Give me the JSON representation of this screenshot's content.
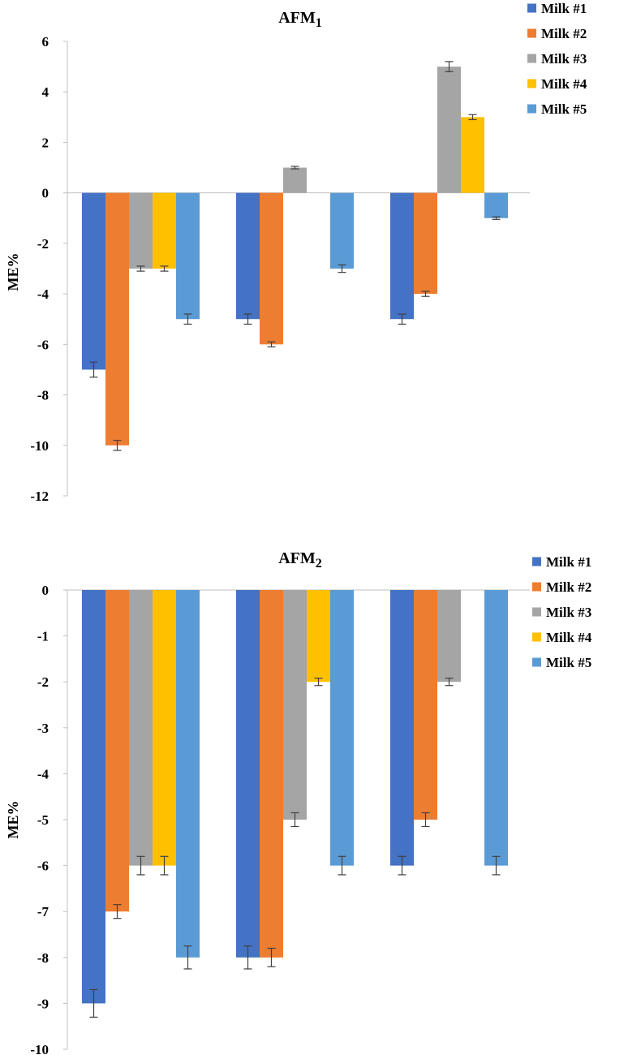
{
  "chart_data": [
    {
      "type": "bar",
      "title": "AFM",
      "title_sub": "1",
      "ylabel": "ME%",
      "xlabel": "",
      "ylim": [
        -12,
        6
      ],
      "yticks": [
        6,
        4,
        2,
        0,
        -2,
        -4,
        -6,
        -8,
        -10,
        -12
      ],
      "ytick_labels": [
        "6",
        "4",
        "2",
        "0",
        "-2",
        "-4",
        "-6",
        "-8",
        "-10",
        "-12"
      ],
      "categories": [
        "",
        "",
        ""
      ],
      "legend_position": "top-right",
      "series": [
        {
          "name": "Milk #1",
          "color": "#4472C4",
          "values": [
            -7,
            -5,
            -5
          ],
          "errors": [
            0.3,
            0.2,
            0.2
          ]
        },
        {
          "name": "Milk #2",
          "color": "#ED7D31",
          "values": [
            -10,
            -6,
            -4
          ],
          "errors": [
            0.2,
            0.1,
            0.1
          ]
        },
        {
          "name": "Milk #3",
          "color": "#A5A5A5",
          "values": [
            -3,
            1,
            5
          ],
          "errors": [
            0.1,
            0.05,
            0.2
          ]
        },
        {
          "name": "Milk #4",
          "color": "#FFC000",
          "values": [
            -3,
            null,
            3
          ],
          "errors": [
            0.1,
            0,
            0.1
          ]
        },
        {
          "name": "Milk #5",
          "color": "#5B9BD5",
          "values": [
            -5,
            -3,
            -1
          ],
          "errors": [
            0.2,
            0.15,
            0.05
          ]
        }
      ]
    },
    {
      "type": "bar",
      "title": "AFM",
      "title_sub": "2",
      "ylabel": "ME%",
      "xlabel": "",
      "ylim": [
        -10,
        0
      ],
      "yticks": [
        0,
        -1,
        -2,
        -3,
        -4,
        -5,
        -6,
        -7,
        -8,
        -9,
        -10
      ],
      "ytick_labels": [
        "0",
        "-1",
        "-2",
        "-3",
        "-4",
        "-5",
        "-6",
        "-7",
        "-8",
        "-9",
        "-10"
      ],
      "categories": [
        "",
        "",
        ""
      ],
      "legend_position": "top-right",
      "series": [
        {
          "name": "Milk #1",
          "color": "#4472C4",
          "values": [
            -9,
            -8,
            -6
          ],
          "errors": [
            0.3,
            0.25,
            0.2
          ]
        },
        {
          "name": "Milk #2",
          "color": "#ED7D31",
          "values": [
            -7,
            -8,
            -5
          ],
          "errors": [
            0.15,
            0.2,
            0.15
          ]
        },
        {
          "name": "Milk #3",
          "color": "#A5A5A5",
          "values": [
            -6,
            -5,
            -2
          ],
          "errors": [
            0.2,
            0.15,
            0.08
          ]
        },
        {
          "name": "Milk #4",
          "color": "#FFC000",
          "values": [
            -6,
            -2,
            null
          ],
          "errors": [
            0.2,
            0.08,
            0
          ]
        },
        {
          "name": "Milk #5",
          "color": "#5B9BD5",
          "values": [
            -8,
            -6,
            -6
          ],
          "errors": [
            0.25,
            0.2,
            0.2
          ]
        }
      ]
    }
  ]
}
